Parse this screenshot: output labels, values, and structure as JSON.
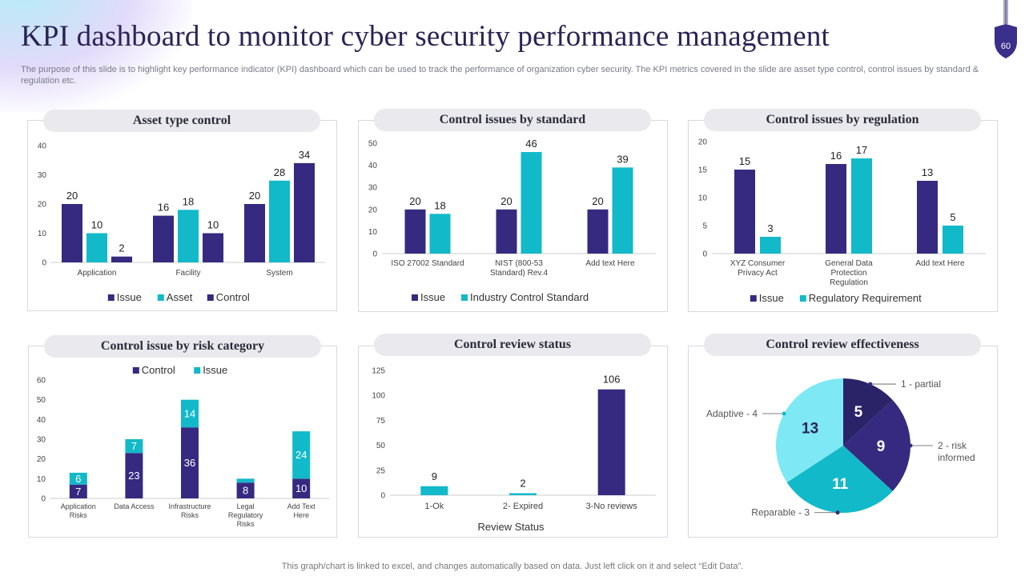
{
  "header": {
    "title": "KPI dashboard to monitor cyber security performance management",
    "subtitle": "The purpose of this slide is to highlight key performance indicator (KPI) dashboard which can be used to track the performance of organization cyber security. The KPI metrics covered in the slide are asset type control, control issues by standard & regulation etc.",
    "page_number": "60"
  },
  "footer": {
    "note": "This graph/chart is linked to excel,  and changes automatically based on data. Just left click on it and select “Edit Data”."
  },
  "colors": {
    "navy": "#352a80",
    "teal": "#12b9c9",
    "light_cyan": "#7ee8f4",
    "axis": "#cccccc",
    "text": "#333333"
  },
  "chart_data": [
    {
      "id": "asset",
      "type": "bar",
      "title": "Asset type control",
      "categories": [
        "Application",
        "Facility",
        "System"
      ],
      "series": [
        {
          "name": "Issue",
          "color": "#352a80",
          "values": [
            20,
            16,
            20
          ]
        },
        {
          "name": "Asset",
          "color": "#12b9c9",
          "values": [
            10,
            18,
            28
          ]
        },
        {
          "name": "Control",
          "color": "#352a80",
          "values": [
            2,
            10,
            34
          ]
        }
      ],
      "ylim": [
        0,
        40
      ],
      "yticks": [
        0,
        10,
        20,
        30,
        40
      ],
      "legend": "bottom"
    },
    {
      "id": "standard",
      "type": "bar",
      "title": "Control issues by standard",
      "categories": [
        "ISO 27002 Standard",
        "NIST (800-53 Standard) Rev.4",
        "Add text Here"
      ],
      "series": [
        {
          "name": "Issue",
          "color": "#352a80",
          "values": [
            20,
            20,
            20
          ]
        },
        {
          "name": "Industry Control Standard",
          "color": "#12b9c9",
          "values": [
            18,
            46,
            39
          ]
        }
      ],
      "ylim": [
        0,
        50
      ],
      "yticks": [
        0,
        10,
        20,
        30,
        40,
        50
      ],
      "legend": "bottom"
    },
    {
      "id": "regulation",
      "type": "bar",
      "title": "Control issues by regulation",
      "categories": [
        "XYZ Consumer Privacy Act",
        "General Data Protection Regulation",
        "Add text Here"
      ],
      "series": [
        {
          "name": "Issue",
          "color": "#352a80",
          "values": [
            15,
            16,
            13
          ]
        },
        {
          "name": "Regulatory Requirement",
          "color": "#12b9c9",
          "values": [
            3,
            17,
            5
          ]
        }
      ],
      "ylim": [
        0,
        20
      ],
      "yticks": [
        0,
        5,
        10,
        15,
        20
      ],
      "legend": "bottom"
    },
    {
      "id": "risk",
      "type": "bar",
      "stacked": true,
      "title": "Control issue by risk category",
      "categories": [
        "Application Risks",
        "Data Access",
        "Infrastructure Risks",
        "Legal Regulatory Risks",
        "Add Text Here"
      ],
      "series": [
        {
          "name": "Control",
          "color": "#352a80",
          "values": [
            7,
            23,
            36,
            8,
            10
          ]
        },
        {
          "name": "Issue",
          "color": "#12b9c9",
          "values": [
            6,
            7,
            14,
            2,
            24
          ]
        }
      ],
      "ylim": [
        0,
        60
      ],
      "yticks": [
        0,
        10,
        20,
        30,
        40,
        50,
        60
      ],
      "legend": "top"
    },
    {
      "id": "review",
      "type": "bar",
      "title": "Control review status",
      "categories": [
        "1-Ok",
        "2- Expired",
        "3-No reviews"
      ],
      "series": [
        {
          "name": "Review Status",
          "values": [
            9,
            2,
            106
          ],
          "colors": [
            "#12b9c9",
            "#12b9c9",
            "#352a80"
          ]
        }
      ],
      "xlabel": "Review  Status",
      "ylim": [
        0,
        125
      ],
      "yticks": [
        0,
        25,
        50,
        75,
        100,
        125
      ]
    },
    {
      "id": "effectiveness",
      "type": "pie",
      "title": "Control review effectiveness",
      "slices": [
        {
          "label": "1 - partial",
          "value": 5,
          "color": "#2b2368"
        },
        {
          "label": "2 - risk informed",
          "value": 9,
          "color": "#352a80"
        },
        {
          "label": "Reparable  - 3",
          "value": 11,
          "color": "#12b9c9"
        },
        {
          "label": "Adaptive  - 4",
          "value": 13,
          "color": "#7ee8f4"
        }
      ]
    }
  ]
}
